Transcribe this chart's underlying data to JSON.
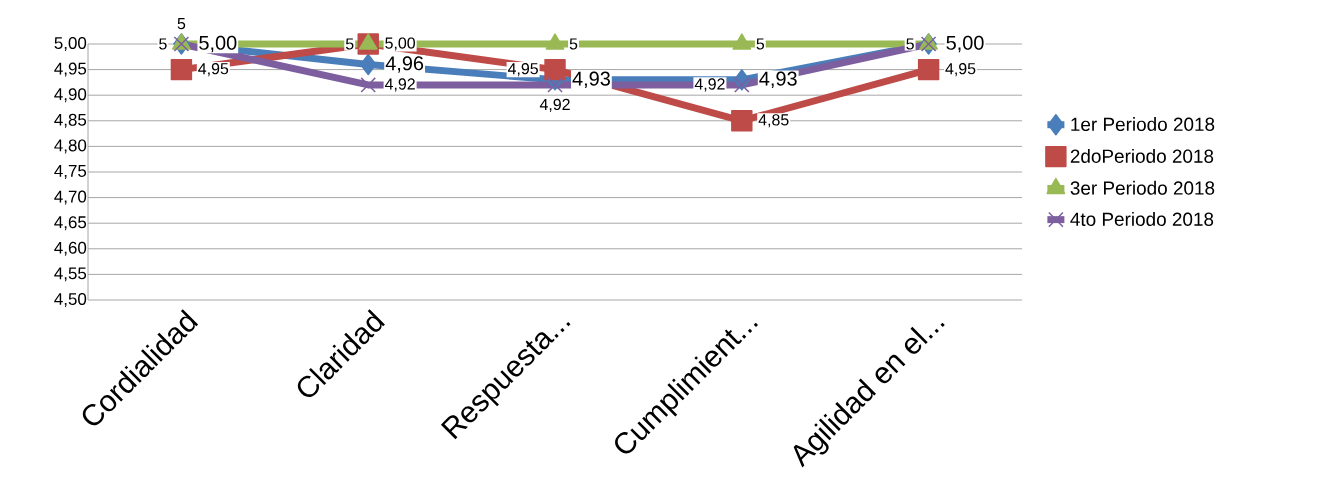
{
  "chart_data": {
    "type": "line",
    "categories": [
      "Cordialidad",
      "Claridad",
      "Respuesta...",
      "Cumplimient...",
      "Agilidad en el..."
    ],
    "series": [
      {
        "name": "1er Periodo 2018",
        "color": "#4a7ebb",
        "marker": "diamond",
        "values": [
          5.0,
          4.96,
          4.93,
          4.93,
          5.0
        ],
        "value_labels": [
          "5,00",
          "4,96",
          "4,93",
          "4,93",
          "5,00"
        ]
      },
      {
        "name": "2doPeriodo 2018",
        "color": "#be4b48",
        "marker": "square",
        "values": [
          4.95,
          5.0,
          4.95,
          4.85,
          4.95
        ],
        "value_labels": [
          "4,95",
          "5,00",
          "4,95",
          "4,85",
          "4,95"
        ]
      },
      {
        "name": "3er Periodo 2018",
        "color": "#98b954",
        "marker": "triangle",
        "values": [
          5,
          5,
          5,
          5,
          5
        ],
        "value_labels": [
          "5",
          "5",
          "5",
          "5",
          "5"
        ]
      },
      {
        "name": "4to Periodo 2018",
        "color": "#7d5fa0",
        "marker": "cross",
        "values": [
          5,
          4.92,
          4.92,
          4.92,
          5
        ],
        "value_labels": [
          "5",
          "4,92",
          "4,92",
          "4,92",
          null
        ]
      }
    ],
    "ylim": [
      4.5,
      5.0
    ],
    "yticks": [
      {
        "value": 4.5,
        "label": "4,50"
      },
      {
        "value": 4.55,
        "label": "4,55"
      },
      {
        "value": 4.6,
        "label": "4,60"
      },
      {
        "value": 4.65,
        "label": "4,65"
      },
      {
        "value": 4.7,
        "label": "4,70"
      },
      {
        "value": 4.75,
        "label": "4,75"
      },
      {
        "value": 4.8,
        "label": "4,80"
      },
      {
        "value": 4.85,
        "label": "4,85"
      },
      {
        "value": 4.9,
        "label": "4,90"
      },
      {
        "value": 4.95,
        "label": "4,95"
      },
      {
        "value": 5.0,
        "label": "5,00"
      }
    ],
    "grid": "y",
    "legend": "right"
  }
}
